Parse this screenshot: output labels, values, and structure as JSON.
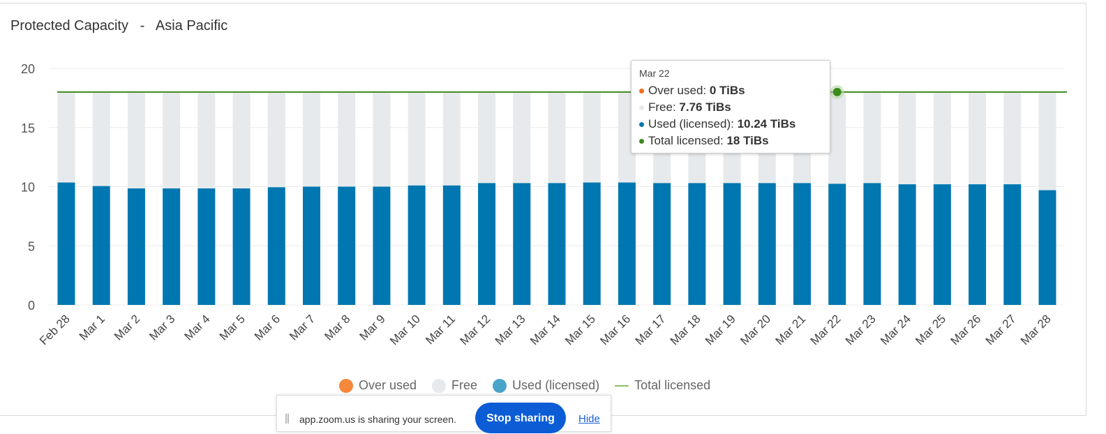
{
  "title": "Protected Capacity   -   Asia Pacific",
  "chart_data": {
    "type": "bar",
    "stacked": true,
    "title": "Protected Capacity - Asia Pacific",
    "xlabel": "",
    "ylabel": "",
    "ylim": [
      0,
      20
    ],
    "yticks": [
      0,
      5,
      10,
      15,
      20
    ],
    "grid": true,
    "categories": [
      "Feb 28",
      "Mar 1",
      "Mar 2",
      "Mar 3",
      "Mar 4",
      "Mar 5",
      "Mar 6",
      "Mar 7",
      "Mar 8",
      "Mar 9",
      "Mar 10",
      "Mar 11",
      "Mar 12",
      "Mar 13",
      "Mar 14",
      "Mar 15",
      "Mar 16",
      "Mar 17",
      "Mar 18",
      "Mar 19",
      "Mar 20",
      "Mar 21",
      "Mar 22",
      "Mar 23",
      "Mar 24",
      "Mar 25",
      "Mar 26",
      "Mar 27",
      "Mar 28"
    ],
    "series": [
      {
        "name": "Over used",
        "color": "#f5883a",
        "values": [
          0,
          0,
          0,
          0,
          0,
          0,
          0,
          0,
          0,
          0,
          0,
          0,
          0,
          0,
          0,
          0,
          0,
          0,
          0,
          0,
          0,
          0,
          0,
          0,
          0,
          0,
          0,
          0,
          0
        ]
      },
      {
        "name": "Used (licensed)",
        "color": "#0077b0",
        "values": [
          10.35,
          10.05,
          9.85,
          9.85,
          9.85,
          9.85,
          9.95,
          10.0,
          10.0,
          10.0,
          10.1,
          10.1,
          10.3,
          10.3,
          10.3,
          10.35,
          10.35,
          10.3,
          10.3,
          10.3,
          10.3,
          10.3,
          10.24,
          10.3,
          10.2,
          10.2,
          10.2,
          10.2,
          9.7
        ]
      },
      {
        "name": "Free",
        "color": "#e6eaec",
        "values": [
          7.65,
          7.95,
          8.15,
          8.15,
          8.15,
          8.15,
          8.05,
          8.0,
          8.0,
          8.0,
          7.9,
          7.9,
          7.7,
          7.7,
          7.7,
          7.65,
          7.65,
          7.7,
          7.7,
          7.7,
          7.7,
          7.7,
          7.76,
          7.7,
          7.8,
          7.8,
          7.8,
          7.8,
          8.3
        ]
      },
      {
        "name": "Total licensed",
        "type": "line",
        "color": "#3d8a1e",
        "values": [
          18,
          18,
          18,
          18,
          18,
          18,
          18,
          18,
          18,
          18,
          18,
          18,
          18,
          18,
          18,
          18,
          18,
          18,
          18,
          18,
          18,
          18,
          18,
          18,
          18,
          18,
          18,
          18,
          18
        ]
      }
    ],
    "legend": [
      "Over used",
      "Free",
      "Used (licensed)",
      "Total licensed"
    ],
    "legend_placement": "bottom-center",
    "highlight_index": 22
  },
  "tooltip": {
    "date": "Mar 22",
    "rows": [
      {
        "label": "Over used: ",
        "value": "0 TiBs",
        "color": "#f26b1d"
      },
      {
        "label": "Free: ",
        "value": "7.76 TiBs",
        "color": "#e6eaec"
      },
      {
        "label": "Used (licensed): ",
        "value": "10.24 TiBs",
        "color": "#0077b0"
      },
      {
        "label": "Total licensed: ",
        "value": "18 TiBs",
        "color": "#3d8a1e"
      }
    ]
  },
  "legend": [
    {
      "label": "Over used",
      "color": "#f5883a"
    },
    {
      "label": "Free",
      "color": "#e6eaec"
    },
    {
      "label": "Used (licensed)",
      "color": "#4aa3c8"
    },
    {
      "label": "Total licensed",
      "color": "#8bbf6a"
    }
  ],
  "share_bar": {
    "message": "app.zoom.us is sharing your screen.",
    "stop_label": "Stop sharing",
    "hide_label": "Hide"
  }
}
